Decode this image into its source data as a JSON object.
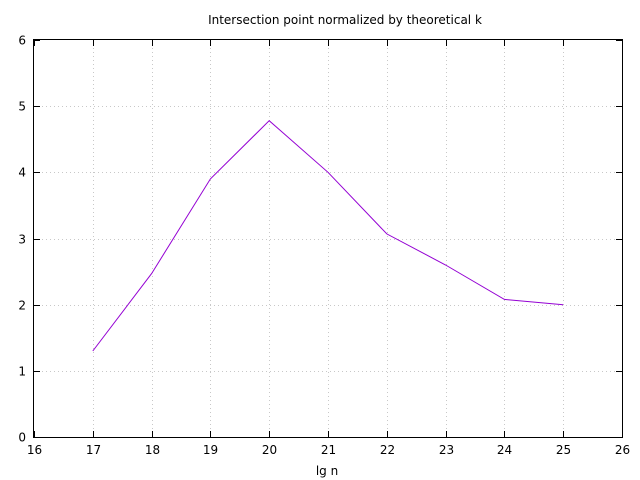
{
  "chart_data": {
    "type": "line",
    "title": "Intersection point normalized by theoretical k",
    "xlabel": "lg n",
    "ylabel": "",
    "xlim": [
      16,
      26
    ],
    "ylim": [
      0,
      6
    ],
    "xticks": [
      16,
      17,
      18,
      19,
      20,
      21,
      22,
      23,
      24,
      25,
      26
    ],
    "yticks": [
      0,
      1,
      2,
      3,
      4,
      5,
      6
    ],
    "grid": true,
    "series": [
      {
        "color": "#9400d3",
        "x": [
          17,
          18,
          19,
          20,
          21,
          22,
          23,
          24,
          25
        ],
        "y": [
          1.3,
          2.47,
          3.9,
          4.78,
          4.0,
          3.07,
          2.6,
          2.08,
          2.0
        ]
      }
    ]
  }
}
